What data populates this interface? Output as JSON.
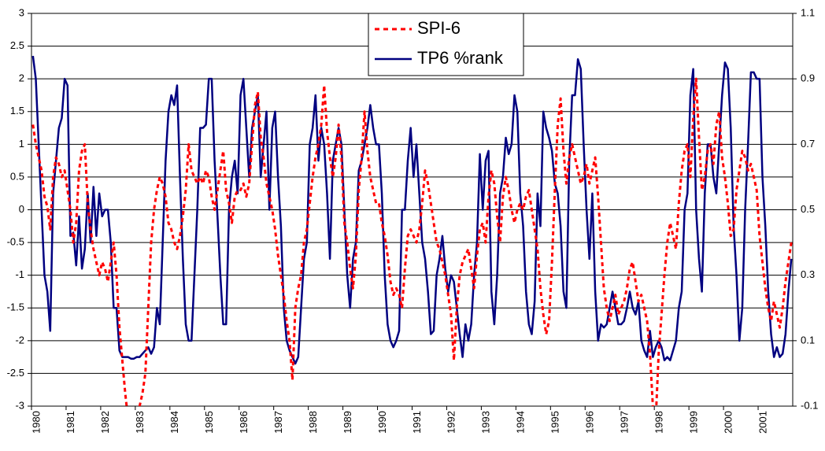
{
  "chart_data": {
    "type": "line",
    "categories": [
      "1980",
      null,
      null,
      null,
      null,
      null,
      null,
      null,
      null,
      null,
      null,
      null,
      "1981",
      null,
      null,
      null,
      null,
      null,
      null,
      null,
      null,
      null,
      null,
      null,
      "1982",
      null,
      null,
      null,
      null,
      null,
      null,
      null,
      null,
      null,
      null,
      null,
      "1983",
      null,
      null,
      null,
      null,
      null,
      null,
      null,
      null,
      null,
      null,
      null,
      "1984",
      null,
      null,
      null,
      null,
      null,
      null,
      null,
      null,
      null,
      null,
      null,
      "1985",
      null,
      null,
      null,
      null,
      null,
      null,
      null,
      null,
      null,
      null,
      null,
      "1986",
      null,
      null,
      null,
      null,
      null,
      null,
      null,
      null,
      null,
      null,
      null,
      "1987",
      null,
      null,
      null,
      null,
      null,
      null,
      null,
      null,
      null,
      null,
      null,
      "1988",
      null,
      null,
      null,
      null,
      null,
      null,
      null,
      null,
      null,
      null,
      null,
      "1989",
      null,
      null,
      null,
      null,
      null,
      null,
      null,
      null,
      null,
      null,
      null,
      "1990",
      null,
      null,
      null,
      null,
      null,
      null,
      null,
      null,
      null,
      null,
      null,
      "1991",
      null,
      null,
      null,
      null,
      null,
      null,
      null,
      null,
      null,
      null,
      null,
      "1992",
      null,
      null,
      null,
      null,
      null,
      null,
      null,
      null,
      null,
      null,
      null,
      "1993",
      null,
      null,
      null,
      null,
      null,
      null,
      null,
      null,
      null,
      null,
      null,
      "1994",
      null,
      null,
      null,
      null,
      null,
      null,
      null,
      null,
      null,
      null,
      null,
      "1995",
      null,
      null,
      null,
      null,
      null,
      null,
      null,
      null,
      null,
      null,
      null,
      "1996",
      null,
      null,
      null,
      null,
      null,
      null,
      null,
      null,
      null,
      null,
      null,
      "1997",
      null,
      null,
      null,
      null,
      null,
      null,
      null,
      null,
      null,
      null,
      null,
      "1998",
      null,
      null,
      null,
      null,
      null,
      null,
      null,
      null,
      null,
      null,
      null,
      "1999",
      null,
      null,
      null,
      null,
      null,
      null,
      null,
      null,
      null,
      null,
      null,
      "2000",
      null,
      null,
      null,
      null,
      null,
      null,
      null,
      null,
      null,
      null,
      null,
      "2001",
      null,
      null,
      null,
      null,
      null,
      null,
      null,
      null,
      null,
      null,
      null
    ],
    "series": [
      {
        "name": "SPI-6",
        "color": "#ff0000",
        "dashed": true,
        "values": [
          1.3,
          1.0,
          0.8,
          0.6,
          0.2,
          0.05,
          -0.3,
          0.5,
          0.8,
          0.7,
          0.5,
          0.6,
          0.3,
          0.0,
          -0.5,
          -0.2,
          0.6,
          0.9,
          1.0,
          0.1,
          -0.3,
          -0.6,
          -0.8,
          -1.0,
          -0.8,
          -0.9,
          -1.1,
          -0.8,
          -0.5,
          -1.0,
          -1.8,
          -2.3,
          -2.8,
          -3.2,
          -3.4,
          -3.5,
          -3.2,
          -3.0,
          -2.8,
          -2.5,
          -1.5,
          -0.5,
          0.0,
          0.3,
          0.5,
          0.4,
          0.2,
          -0.2,
          -0.3,
          -0.5,
          -0.6,
          -0.4,
          -0.1,
          0.3,
          1.0,
          0.6,
          0.5,
          0.4,
          0.5,
          0.4,
          0.6,
          0.5,
          0.2,
          0.0,
          0.3,
          0.6,
          0.9,
          0.3,
          0.1,
          -0.2,
          0.2,
          0.3,
          0.3,
          0.4,
          0.2,
          0.4,
          1.0,
          1.6,
          1.8,
          1.1,
          0.8,
          0.4,
          0.2,
          0.0,
          -0.3,
          -0.7,
          -1.0,
          -1.3,
          -1.7,
          -2.0,
          -2.6,
          -1.5,
          -1.2,
          -1.0,
          -0.5,
          -0.3,
          0.1,
          0.5,
          0.8,
          1.0,
          1.3,
          1.9,
          1.2,
          0.8,
          0.5,
          0.8,
          1.3,
          0.8,
          -0.2,
          -0.5,
          -0.9,
          -1.2,
          -0.7,
          0.3,
          0.8,
          1.5,
          0.9,
          0.5,
          0.3,
          0.1,
          0.1,
          -0.2,
          -0.4,
          -0.7,
          -1.1,
          -1.3,
          -1.2,
          -1.3,
          -1.5,
          -0.9,
          -0.4,
          -0.3,
          -0.4,
          -0.5,
          -0.3,
          0.1,
          0.6,
          0.4,
          0.1,
          -0.2,
          -0.5,
          -0.6,
          -0.8,
          -1.0,
          -1.3,
          -1.6,
          -2.3,
          -1.5,
          -1.0,
          -0.8,
          -0.7,
          -0.6,
          -0.9,
          -1.2,
          -0.7,
          -0.3,
          -0.2,
          -0.5,
          0.2,
          0.6,
          0.4,
          -0.1,
          -0.5,
          0.2,
          0.5,
          0.3,
          0.0,
          -0.2,
          0.0,
          0.1,
          0.0,
          0.2,
          0.3,
          0.0,
          -0.3,
          -0.6,
          -1.2,
          -1.6,
          -1.9,
          -1.7,
          -0.8,
          0.3,
          1.3,
          1.7,
          0.9,
          0.4,
          0.8,
          1.0,
          0.8,
          0.6,
          0.4,
          0.5,
          0.7,
          0.4,
          0.6,
          0.8,
          0.2,
          -0.5,
          -1.2,
          -1.5,
          -1.7,
          -1.5,
          -1.3,
          -1.6,
          -1.5,
          -1.4,
          -1.2,
          -0.9,
          -0.8,
          -1.1,
          -1.4,
          -1.3,
          -1.5,
          -1.7,
          -2.2,
          -3.0,
          -3.2,
          -2.2,
          -1.6,
          -1.0,
          -0.5,
          -0.2,
          -0.4,
          -0.6,
          0.1,
          0.6,
          0.9,
          1.0,
          0.5,
          1.4,
          2.0,
          1.1,
          0.3,
          0.5,
          0.9,
          1.0,
          0.7,
          1.3,
          1.5,
          0.8,
          0.5,
          0.1,
          -0.4,
          -0.3,
          0.3,
          0.6,
          0.9,
          0.8,
          0.6,
          0.7,
          0.5,
          0.3,
          -0.4,
          -0.8,
          -1.2,
          -1.5,
          -1.7,
          -1.4,
          -1.6,
          -1.8,
          -1.5,
          -1.1,
          -0.8,
          -0.5
        ]
      },
      {
        "name": "TP6 %rank",
        "color": "#000080",
        "axis": "y2",
        "values": [
          0.97,
          0.9,
          0.7,
          0.5,
          0.3,
          0.25,
          0.13,
          0.55,
          0.65,
          0.75,
          0.78,
          0.9,
          0.88,
          0.42,
          0.43,
          0.33,
          0.48,
          0.32,
          0.38,
          0.55,
          0.4,
          0.57,
          0.42,
          0.55,
          0.48,
          0.5,
          0.5,
          0.4,
          0.2,
          0.2,
          0.07,
          0.05,
          0.05,
          0.05,
          0.045,
          0.045,
          0.05,
          0.05,
          0.06,
          0.07,
          0.08,
          0.06,
          0.08,
          0.2,
          0.15,
          0.4,
          0.65,
          0.8,
          0.85,
          0.82,
          0.88,
          0.6,
          0.35,
          0.15,
          0.1,
          0.1,
          0.3,
          0.5,
          0.75,
          0.75,
          0.76,
          0.9,
          0.9,
          0.65,
          0.48,
          0.3,
          0.15,
          0.15,
          0.5,
          0.6,
          0.65,
          0.55,
          0.85,
          0.9,
          0.75,
          0.6,
          0.75,
          0.8,
          0.85,
          0.6,
          0.7,
          0.8,
          0.5,
          0.75,
          0.8,
          0.6,
          0.45,
          0.2,
          0.1,
          0.07,
          0.05,
          0.03,
          0.05,
          0.2,
          0.35,
          0.4,
          0.7,
          0.75,
          0.85,
          0.65,
          0.75,
          0.7,
          0.55,
          0.35,
          0.65,
          0.7,
          0.75,
          0.7,
          0.5,
          0.3,
          0.2,
          0.35,
          0.4,
          0.62,
          0.65,
          0.7,
          0.75,
          0.82,
          0.75,
          0.7,
          0.7,
          0.55,
          0.3,
          0.15,
          0.1,
          0.08,
          0.1,
          0.13,
          0.5,
          0.5,
          0.65,
          0.75,
          0.6,
          0.7,
          0.55,
          0.4,
          0.35,
          0.25,
          0.12,
          0.13,
          0.3,
          0.35,
          0.42,
          0.32,
          0.25,
          0.3,
          0.28,
          0.2,
          0.12,
          0.05,
          0.15,
          0.1,
          0.15,
          0.3,
          0.4,
          0.67,
          0.5,
          0.65,
          0.68,
          0.25,
          0.15,
          0.3,
          0.55,
          0.6,
          0.72,
          0.67,
          0.7,
          0.85,
          0.8,
          0.55,
          0.45,
          0.25,
          0.15,
          0.12,
          0.22,
          0.55,
          0.45,
          0.8,
          0.75,
          0.72,
          0.68,
          0.58,
          0.55,
          0.45,
          0.25,
          0.2,
          0.65,
          0.85,
          0.85,
          0.96,
          0.93,
          0.7,
          0.5,
          0.35,
          0.55,
          0.25,
          0.1,
          0.15,
          0.14,
          0.15,
          0.2,
          0.25,
          0.2,
          0.15,
          0.15,
          0.16,
          0.2,
          0.25,
          0.2,
          0.18,
          0.22,
          0.1,
          0.07,
          0.05,
          0.13,
          0.05,
          0.08,
          0.1,
          0.08,
          0.04,
          0.05,
          0.04,
          0.07,
          0.1,
          0.2,
          0.25,
          0.5,
          0.55,
          0.85,
          0.93,
          0.5,
          0.35,
          0.25,
          0.55,
          0.7,
          0.7,
          0.6,
          0.55,
          0.7,
          0.85,
          0.95,
          0.93,
          0.75,
          0.45,
          0.3,
          0.1,
          0.2,
          0.5,
          0.7,
          0.92,
          0.92,
          0.9,
          0.9,
          0.6,
          0.45,
          0.25,
          0.12,
          0.05,
          0.08,
          0.05,
          0.06,
          0.12,
          0.25,
          0.35
        ]
      }
    ],
    "ylim": [
      -3,
      3
    ],
    "yticks": [
      -3,
      -2.5,
      -2,
      -1.5,
      -1,
      -0.5,
      0,
      0.5,
      1,
      1.5,
      2,
      2.5,
      3
    ],
    "y2lim": [
      -0.1,
      1.1
    ],
    "y2ticks": [
      -0.1,
      0.1,
      0.3,
      0.5,
      0.7,
      0.9,
      1.1
    ],
    "grid": true,
    "legend": "top-center"
  }
}
